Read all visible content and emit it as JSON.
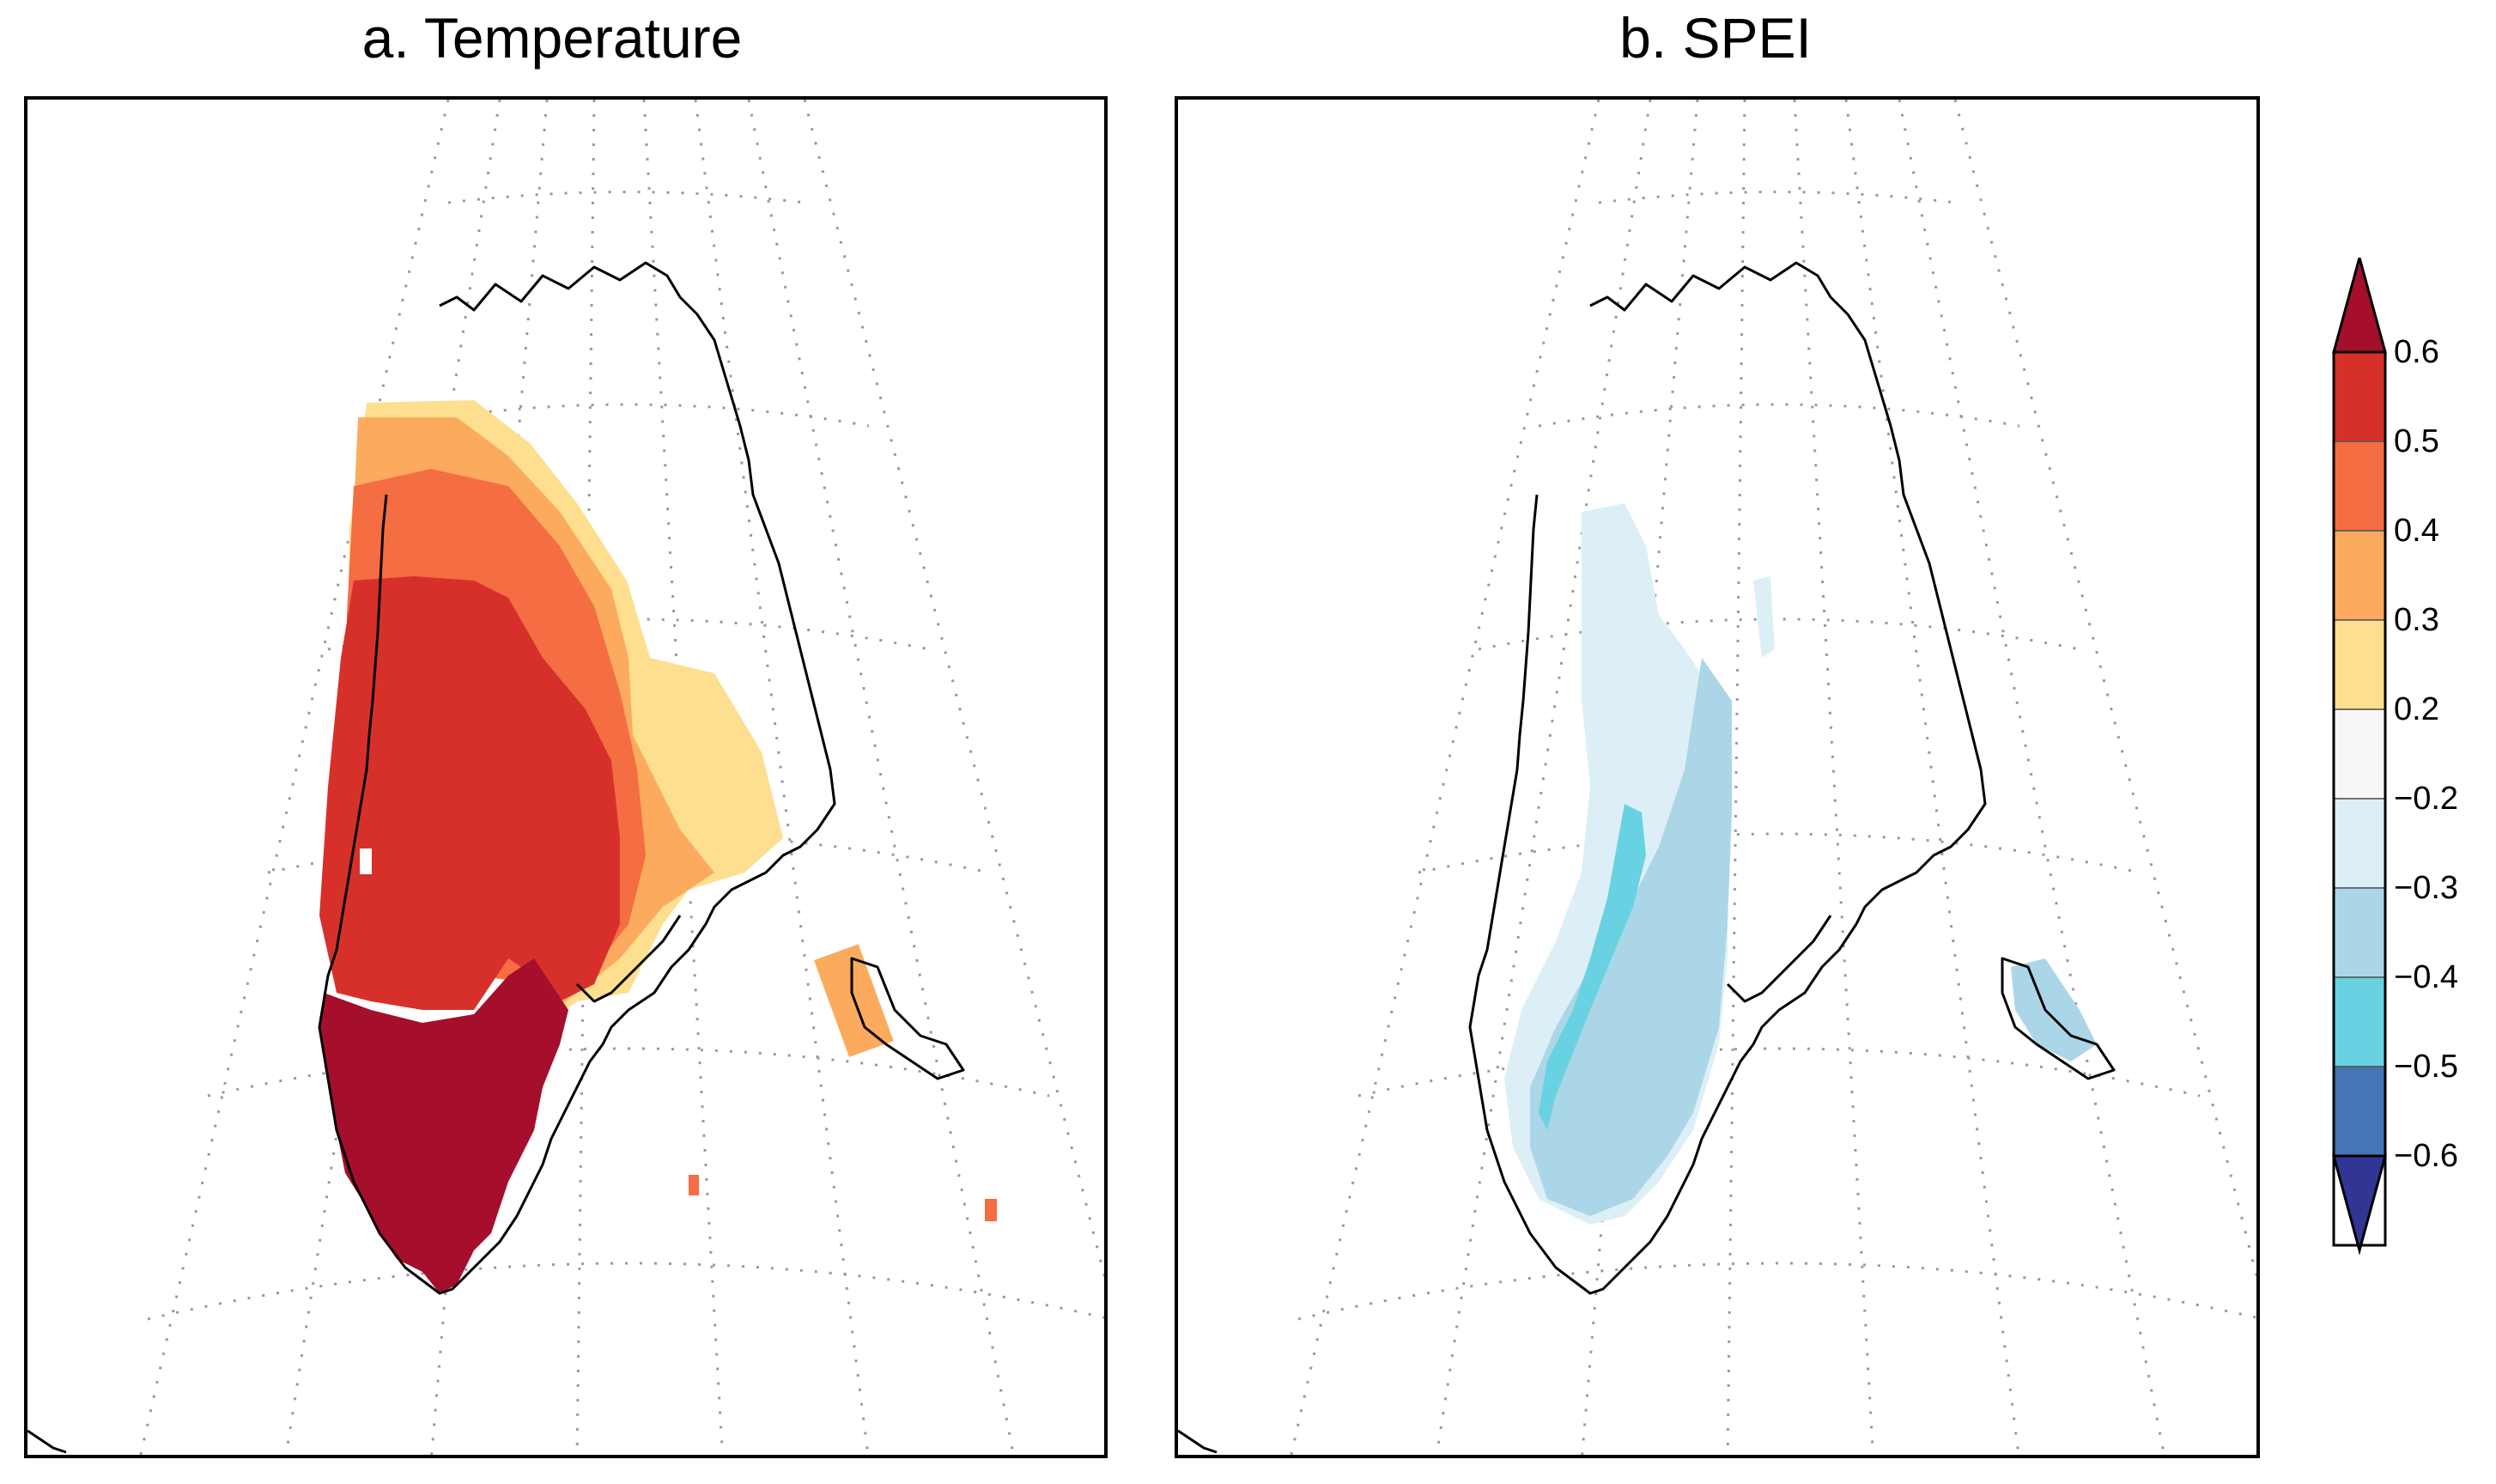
{
  "panels": {
    "a": {
      "title": "a. Temperature"
    },
    "b": {
      "title": "b. SPEI"
    }
  },
  "colorbar": {
    "tick_labels": [
      "0.6",
      "0.5",
      "0.4",
      "0.3",
      "0.2",
      "−0.2",
      "−0.3",
      "−0.4",
      "−0.5",
      "−0.6"
    ],
    "bins": [
      {
        "range": "> 0.6",
        "color": "#a50f2c"
      },
      {
        "range": "0.5 to 0.6",
        "color": "#d7302b"
      },
      {
        "range": "0.4 to 0.5",
        "color": "#f46d43"
      },
      {
        "range": "0.3 to 0.4",
        "color": "#fcaa5e"
      },
      {
        "range": "0.2 to 0.3",
        "color": "#fede8f"
      },
      {
        "range": "-0.2 to 0.2",
        "color": "#f7f7f7"
      },
      {
        "range": "-0.3 to -0.2",
        "color": "#ddeff6"
      },
      {
        "range": "-0.4 to -0.3",
        "color": "#abd6e7"
      },
      {
        "range": "-0.5 to -0.4",
        "color": "#68d2e2"
      },
      {
        "range": "-0.6 to -0.5",
        "color": "#4575b4"
      },
      {
        "range": "< -0.6",
        "color": "#313695"
      }
    ]
  }
}
